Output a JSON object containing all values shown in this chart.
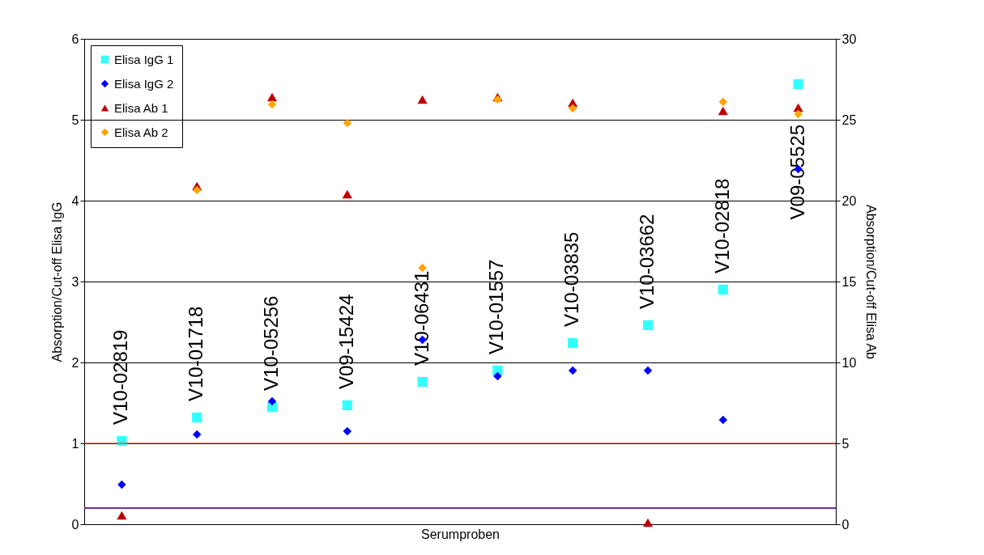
{
  "chart_data": {
    "type": "scatter",
    "xlabel": "Serumproben",
    "ylabel": "Absorption/Cut-off Elisa IgG",
    "y2label": "Absorption/Cut-off Elisa Ab",
    "categories": [
      "V10-02819",
      "V10-01718",
      "V10-05256",
      "V09-15424",
      "V10-06431",
      "V10-01557",
      "V10-03835",
      "V10-03662",
      "V10-02818",
      "V09-05525"
    ],
    "series": [
      {
        "name": "Elisa IgG 1",
        "color": "#33ffff",
        "marker": "square",
        "values": [
          1.03,
          1.32,
          1.45,
          1.47,
          1.76,
          1.9,
          2.24,
          2.46,
          2.9,
          5.44
        ]
      },
      {
        "name": "Elisa IgG 2",
        "color": "#0000ff",
        "marker": "diamond",
        "values": [
          0.49,
          1.11,
          1.52,
          1.15,
          2.28,
          1.83,
          1.9,
          1.9,
          1.29,
          4.39
        ]
      },
      {
        "name": "Elisa Ab 1",
        "color": "#c00000",
        "marker": "triangle",
        "axis": "y2",
        "values": [
          0.55,
          20.9,
          26.4,
          20.4,
          26.25,
          26.4,
          26.05,
          0.1,
          25.55,
          25.75
        ]
      },
      {
        "name": "Elisa Ab 2",
        "color": "#ffa500",
        "marker": "diamond",
        "axis": "y2",
        "values": [
          null,
          20.65,
          25.95,
          24.8,
          15.85,
          26.25,
          25.7,
          null,
          26.1,
          25.35
        ]
      }
    ],
    "ylim": [
      0,
      6
    ],
    "yticks": [
      0,
      1,
      2,
      3,
      4,
      5,
      6
    ],
    "y2lim": [
      0,
      30
    ],
    "y2ticks": [
      0,
      5,
      10,
      15,
      20,
      25,
      30
    ],
    "ref_lines": [
      {
        "axis": "y",
        "value": 1,
        "color": "#ff0000"
      },
      {
        "axis": "y2",
        "value": 1,
        "color": "#7030a0"
      }
    ],
    "grid": "y",
    "legend": "top left",
    "tick_labels": "y"
  }
}
